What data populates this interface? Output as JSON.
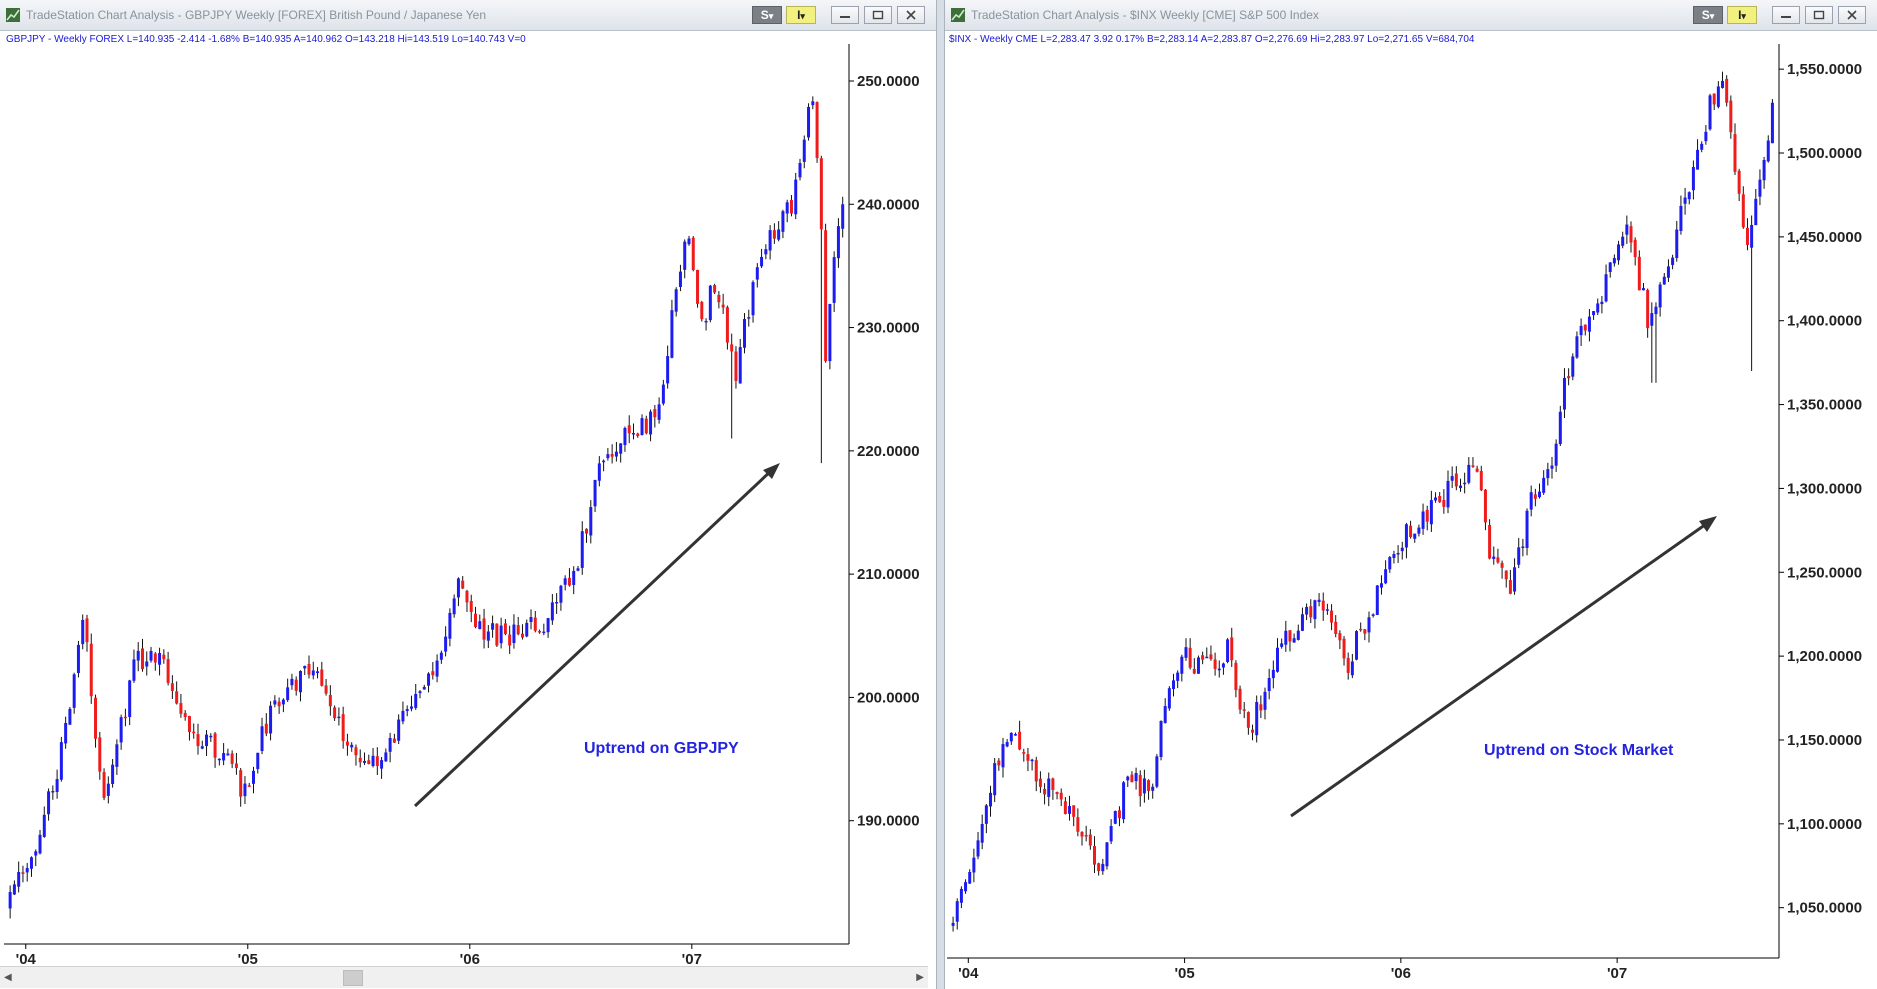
{
  "left": {
    "title": "TradeStation Chart Analysis - GBPJPY Weekly [FOREX] British Pound / Japanese Yen",
    "info": "GBPJPY - Weekly  FOREX  L=140.935  -2.414  -1.68%  B=140.935  A=140.962  O=143.218  Hi=143.519  Lo=140.743  V=0",
    "annotation": "Uptrend on GBPJPY",
    "s_label": "S",
    "i_label": "I",
    "dropdown_glyph": "▾"
  },
  "right": {
    "title": "TradeStation Chart Analysis - $INX Weekly [CME] S&P 500 Index",
    "info": "$INX - Weekly  CME  L=2,283.47  3.92  0.17%  B=2,283.14  A=2,283.87  O=2,276.69  Hi=2,283.97  Lo=2,271.65  V=684,704",
    "annotation": "Uptrend on Stock Market",
    "s_label": "S",
    "i_label": "I",
    "dropdown_glyph": "▾"
  },
  "colors": {
    "up": "#1c1cf0",
    "down": "#ef1c1c",
    "wick": "#111111",
    "arrow": "#333333",
    "info_text": "#1a1ad6"
  },
  "chart_data": [
    {
      "type": "ohlc-bar",
      "series": "GBPJPY Weekly",
      "x_tick_labels": [
        "'04",
        "'05",
        "'06",
        "'07"
      ],
      "y_tick_labels": [
        "190.0000",
        "200.0000",
        "210.0000",
        "220.0000",
        "230.0000",
        "240.0000",
        "250.0000"
      ],
      "ylim": [
        180,
        253
      ],
      "x_years": [
        2003.92,
        2007.69
      ],
      "x_ticks": [
        2004.0,
        2005.0,
        2006.0,
        2007.0
      ],
      "y_ticks": [
        190,
        200,
        210,
        220,
        230,
        240,
        250
      ],
      "path": [
        [
          2003.92,
          183
        ],
        [
          2004.05,
          188
        ],
        [
          2004.17,
          196
        ],
        [
          2004.26,
          206
        ],
        [
          2004.35,
          192
        ],
        [
          2004.5,
          203
        ],
        [
          2004.6,
          204
        ],
        [
          2004.75,
          197
        ],
        [
          2004.9,
          195
        ],
        [
          2005.0,
          192
        ],
        [
          2005.08,
          198
        ],
        [
          2005.2,
          201
        ],
        [
          2005.3,
          203
        ],
        [
          2005.4,
          198
        ],
        [
          2005.55,
          194
        ],
        [
          2005.7,
          198
        ],
        [
          2005.85,
          203
        ],
        [
          2005.96,
          210
        ],
        [
          2006.05,
          205
        ],
        [
          2006.2,
          205
        ],
        [
          2006.35,
          206
        ],
        [
          2006.5,
          212
        ],
        [
          2006.6,
          220
        ],
        [
          2006.78,
          222
        ],
        [
          2006.85,
          223
        ],
        [
          2006.97,
          238
        ],
        [
          2007.05,
          230
        ],
        [
          2007.1,
          234
        ],
        [
          2007.2,
          226
        ],
        [
          2007.3,
          236
        ],
        [
          2007.4,
          239
        ],
        [
          2007.45,
          240
        ],
        [
          2007.5,
          245
        ],
        [
          2007.55,
          249
        ],
        [
          2007.58,
          240
        ],
        [
          2007.6,
          226
        ],
        [
          2007.63,
          233
        ],
        [
          2007.67,
          240
        ],
        [
          2007.69,
          237
        ]
      ],
      "shocks": [
        {
          "x": 2007.59,
          "low": 219
        },
        {
          "x": 2007.18,
          "low": 221
        }
      ],
      "final_close": 240.0
    },
    {
      "type": "ohlc-bar",
      "series": "$INX Weekly",
      "x_tick_labels": [
        "'04",
        "'05",
        "'06",
        "'07"
      ],
      "y_tick_labels": [
        "1,050.0000",
        "1,100.0000",
        "1,150.0000",
        "1,200.0000",
        "1,250.0000",
        "1,300.0000",
        "1,350.0000",
        "1,400.0000",
        "1,450.0000",
        "1,500.0000",
        "1,550.0000"
      ],
      "ylim": [
        1020,
        1565
      ],
      "x_years": [
        2003.92,
        2007.73
      ],
      "x_ticks": [
        2004.0,
        2005.0,
        2006.0,
        2007.0
      ],
      "y_ticks": [
        1050,
        1100,
        1150,
        1200,
        1250,
        1300,
        1350,
        1400,
        1450,
        1500,
        1550
      ],
      "path": [
        [
          2003.92,
          1040
        ],
        [
          2004.0,
          1065
        ],
        [
          2004.12,
          1135
        ],
        [
          2004.2,
          1155
        ],
        [
          2004.3,
          1130
        ],
        [
          2004.45,
          1110
        ],
        [
          2004.55,
          1085
        ],
        [
          2004.6,
          1070
        ],
        [
          2004.75,
          1130
        ],
        [
          2004.85,
          1115
        ],
        [
          2004.92,
          1185
        ],
        [
          2005.0,
          1205
        ],
        [
          2005.08,
          1190
        ],
        [
          2005.2,
          1205
        ],
        [
          2005.3,
          1150
        ],
        [
          2005.4,
          1195
        ],
        [
          2005.55,
          1225
        ],
        [
          2005.65,
          1230
        ],
        [
          2005.75,
          1195
        ],
        [
          2005.85,
          1225
        ],
        [
          2006.0,
          1270
        ],
        [
          2006.1,
          1280
        ],
        [
          2006.2,
          1295
        ],
        [
          2006.35,
          1320
        ],
        [
          2006.4,
          1265
        ],
        [
          2006.5,
          1240
        ],
        [
          2006.6,
          1290
        ],
        [
          2006.7,
          1310
        ],
        [
          2006.75,
          1365
        ],
        [
          2006.85,
          1395
        ],
        [
          2006.95,
          1425
        ],
        [
          2007.05,
          1455
        ],
        [
          2007.15,
          1395
        ],
        [
          2007.25,
          1440
        ],
        [
          2007.35,
          1490
        ],
        [
          2007.42,
          1525
        ],
        [
          2007.5,
          1540
        ],
        [
          2007.55,
          1490
        ],
        [
          2007.6,
          1450
        ],
        [
          2007.65,
          1470
        ],
        [
          2007.7,
          1515
        ],
        [
          2007.73,
          1530
        ]
      ],
      "shocks": [
        {
          "x": 2007.62,
          "low": 1370
        },
        {
          "x": 2007.17,
          "low": 1363
        }
      ],
      "final_close": 1530.0
    }
  ]
}
